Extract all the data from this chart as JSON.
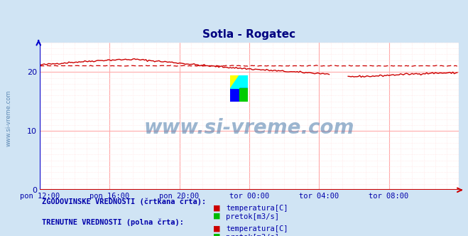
{
  "title": "Sotla - Rogatec",
  "title_color": "#000080",
  "bg_color": "#d0e4f4",
  "plot_bg_color": "#ffffff",
  "grid_color": "#ffaaaa",
  "grid_color_minor": "#ffdddd",
  "watermark_text": "www.si-vreme.com",
  "watermark_color": "#4a7aaa",
  "xlim": [
    0,
    288
  ],
  "ylim": [
    0,
    25
  ],
  "yticks": [
    0,
    10,
    20
  ],
  "xtick_labels": [
    "pon 12:00",
    "pon 16:00",
    "pon 20:00",
    "tor 00:00",
    "tor 04:00",
    "tor 08:00"
  ],
  "xtick_positions": [
    0,
    48,
    96,
    144,
    192,
    240
  ],
  "red_color": "#cc0000",
  "green_color": "#00bb00",
  "axis_color": "#cc0000",
  "yaxis_color": "#0000cc",
  "tick_color": "#0000aa",
  "legend_text1": "ZGODOVINSKE VREDNOSTI (črtkana črta):",
  "legend_text2": "TRENUTNE VREDNOSTI (polna črta):",
  "legend_label1": "temperatura[C]",
  "legend_label2": "pretok[m3/s]",
  "sidebar_text": "www.si-vreme.com"
}
